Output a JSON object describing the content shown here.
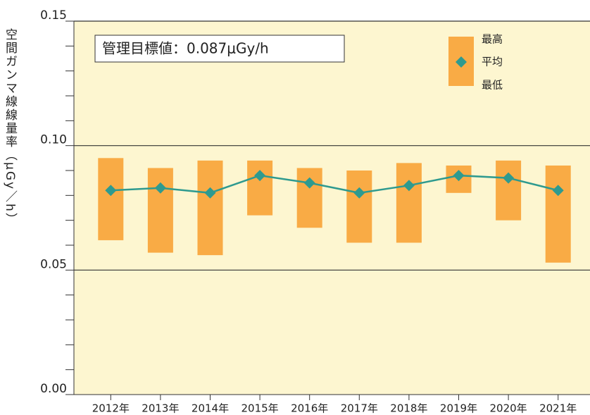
{
  "chart_data": {
    "type": "range_line",
    "y_label": "空間ガンマ線線量率（μGy／h）",
    "annotation": "管理目標値：0.087μGy/h",
    "categories": [
      "2012年",
      "2013年",
      "2014年",
      "2015年",
      "2016年",
      "2017年",
      "2018年",
      "2019年",
      "2020年",
      "2021年"
    ],
    "series": [
      {
        "name": "最高",
        "color": "#f9ab45",
        "values": [
          0.095,
          0.091,
          0.094,
          0.094,
          0.091,
          0.09,
          0.093,
          0.092,
          0.094,
          0.092
        ]
      },
      {
        "name": "平均",
        "color": "#2e9a8f",
        "values": [
          0.082,
          0.083,
          0.081,
          0.088,
          0.085,
          0.081,
          0.084,
          0.088,
          0.087,
          0.082
        ]
      },
      {
        "name": "最低",
        "color": "#f9ab45",
        "values": [
          0.062,
          0.057,
          0.056,
          0.072,
          0.067,
          0.061,
          0.061,
          0.081,
          0.07,
          0.053
        ]
      }
    ],
    "ylim": [
      0,
      0.15
    ],
    "yticks": [
      {
        "value": 0,
        "label": "0.00"
      },
      0.05,
      {
        "value": 0.1,
        "label": "0.10"
      },
      0.15
    ],
    "minor_yticks": [
      0.01,
      0.02,
      0.03,
      0.04,
      0.06,
      0.07,
      0.08,
      0.09,
      0.11,
      0.12,
      0.13,
      0.14
    ],
    "grid": true,
    "background": "#fdf6d0"
  }
}
